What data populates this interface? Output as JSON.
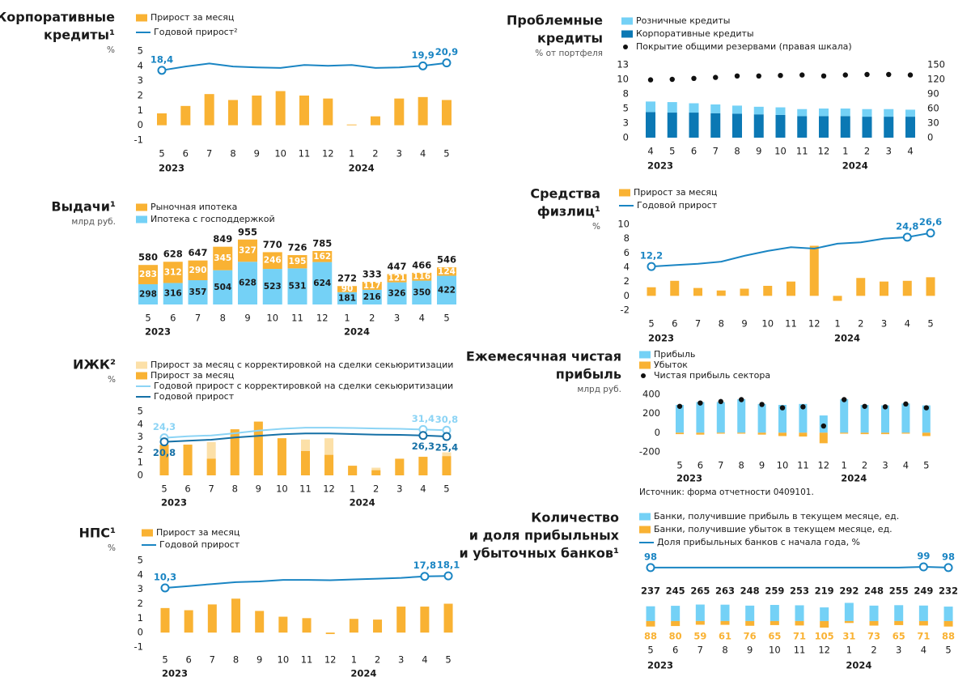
{
  "chart_data": [
    {
      "type": "combo",
      "title": [
        "Корпоративные",
        "кредиты¹"
      ],
      "unit": "%",
      "categories": [
        "5",
        "6",
        "7",
        "8",
        "9",
        "10",
        "11",
        "12",
        "1",
        "2",
        "3",
        "4",
        "5"
      ],
      "years": [
        "2023",
        null,
        null,
        null,
        null,
        null,
        null,
        null,
        "2024",
        null,
        null,
        null,
        null
      ],
      "ylim": [
        -1,
        5
      ],
      "yticks": [
        -1,
        0,
        1,
        2,
        3,
        4,
        5
      ],
      "y2lim": [
        -5.1,
        24.9
      ],
      "series": [
        {
          "name": "Прирост за месяц",
          "kind": "bar",
          "color": "#F9B233",
          "values": [
            0.8,
            1.3,
            2.1,
            1.7,
            2.0,
            2.3,
            2.0,
            1.8,
            0.05,
            0.6,
            1.8,
            1.9,
            1.7
          ]
        },
        {
          "name": "Годовой прирост²",
          "kind": "line",
          "axis": "y2",
          "color": "#1A85C3",
          "values": [
            18.4,
            19.7,
            20.7,
            19.7,
            19.4,
            19.2,
            20.2,
            19.9,
            20.2,
            19.2,
            19.4,
            19.9,
            20.9
          ],
          "value_labels": [
            "18,4",
            null,
            null,
            null,
            null,
            null,
            null,
            null,
            null,
            null,
            null,
            "19,9",
            "20,9"
          ]
        }
      ]
    },
    {
      "type": "combo",
      "title": [
        "Выдачи¹"
      ],
      "unit": "млрд руб.",
      "categories": [
        "5",
        "6",
        "7",
        "8",
        "9",
        "10",
        "11",
        "12",
        "1",
        "2",
        "3",
        "4",
        "5"
      ],
      "years": [
        "2023",
        null,
        null,
        null,
        null,
        null,
        null,
        null,
        "2024",
        null,
        null,
        null,
        null
      ],
      "ylim": [
        0,
        1000
      ],
      "series": [
        {
          "name": "Рыночная ипотека",
          "kind": "bar",
          "stack": true,
          "color": "#F9B233",
          "values": [
            283,
            312,
            290,
            345,
            327,
            246,
            195,
            162,
            90,
            117,
            121,
            116,
            124
          ]
        },
        {
          "name": "Ипотека с господдержкой",
          "kind": "bar",
          "stack": true,
          "color": "#74D1F6",
          "values": [
            298,
            316,
            357,
            504,
            628,
            523,
            531,
            624,
            181,
            216,
            326,
            350,
            422
          ]
        }
      ],
      "stack_order": [
        1,
        0
      ],
      "totals": [
        580,
        628,
        647,
        849,
        955,
        770,
        726,
        785,
        272,
        333,
        447,
        466,
        546
      ]
    },
    {
      "type": "combo",
      "title": [
        "ИЖК²"
      ],
      "unit": "%",
      "categories": [
        "5",
        "6",
        "7",
        "8",
        "9",
        "10",
        "11",
        "12",
        "1",
        "2",
        "3",
        "4",
        "5"
      ],
      "years": [
        "2023",
        null,
        null,
        null,
        null,
        null,
        null,
        null,
        "2024",
        null,
        null,
        null,
        null
      ],
      "ylim": [
        0,
        5
      ],
      "yticks": [
        0,
        1,
        2,
        3,
        4,
        5
      ],
      "y2lim": [
        -8,
        47
      ],
      "series": [
        {
          "name": "Прирост за месяц с корректировкой на сделки секьюритизации",
          "kind": "bar",
          "color": "#FCE0A8",
          "values": [
            2.4,
            2.4,
            2.6,
            3.6,
            4.2,
            2.9,
            2.8,
            2.9,
            0.75,
            0.6,
            1.3,
            1.45,
            1.8
          ]
        },
        {
          "name": "Прирост за месяц",
          "kind": "bar",
          "color": "#F9B233",
          "values": [
            2.4,
            2.4,
            1.3,
            3.6,
            4.2,
            2.9,
            1.9,
            1.6,
            0.75,
            0.4,
            1.3,
            1.45,
            1.5
          ]
        },
        {
          "name": "Годовой прирост с корректировкой на сделки секьюритизации",
          "kind": "line",
          "axis": "y2",
          "color": "#8CD4F5",
          "values": [
            24.3,
            25.6,
            26.3,
            28.2,
            30.5,
            32.0,
            33.0,
            33.0,
            32.7,
            32.3,
            32.0,
            31.4,
            30.8
          ],
          "value_labels": [
            "24,3",
            null,
            null,
            null,
            null,
            null,
            null,
            null,
            null,
            null,
            null,
            "31,4",
            "30,8"
          ]
        },
        {
          "name": "Годовой прирост",
          "kind": "line",
          "axis": "y2",
          "color": "#1570A6",
          "values": [
            20.8,
            21.8,
            22.6,
            24.5,
            26.0,
            27.3,
            28.0,
            28.0,
            27.5,
            27.0,
            26.8,
            26.3,
            25.4
          ],
          "value_labels": [
            "20,8",
            null,
            null,
            null,
            null,
            null,
            null,
            null,
            null,
            null,
            null,
            "26,3",
            "25,4"
          ]
        }
      ]
    },
    {
      "type": "combo",
      "title": [
        "НПС¹"
      ],
      "unit": "%",
      "categories": [
        "5",
        "6",
        "7",
        "8",
        "9",
        "10",
        "11",
        "12",
        "1",
        "2",
        "3",
        "4",
        "5"
      ],
      "years": [
        "2023",
        null,
        null,
        null,
        null,
        null,
        null,
        null,
        "2024",
        null,
        null,
        null,
        null
      ],
      "ylim": [
        -1,
        5
      ],
      "yticks": [
        -1,
        0,
        1,
        2,
        3,
        4,
        5
      ],
      "y2lim": [
        -28.2,
        28.2
      ],
      "series": [
        {
          "name": "Прирост за месяц",
          "kind": "bar",
          "color": "#F9B233",
          "values": [
            1.7,
            1.55,
            1.95,
            2.35,
            1.5,
            1.1,
            1.0,
            -0.1,
            0.95,
            0.9,
            1.8,
            1.8,
            2.0
          ]
        },
        {
          "name": "Годовой прирост",
          "kind": "line",
          "axis": "y2",
          "color": "#1A85C3",
          "values": [
            10.3,
            11.5,
            12.8,
            14.0,
            14.5,
            15.5,
            15.5,
            15.3,
            15.8,
            16.3,
            16.8,
            17.8,
            18.1
          ],
          "value_labels": [
            "10,3",
            null,
            null,
            null,
            null,
            null,
            null,
            null,
            null,
            null,
            null,
            "17,8",
            "18,1"
          ]
        }
      ]
    },
    {
      "type": "combo",
      "title": [
        "Проблемные",
        "кредиты"
      ],
      "unit": "% от портфеля",
      "categories": [
        "4",
        "5",
        "6",
        "7",
        "8",
        "9",
        "10",
        "11",
        "12",
        "1",
        "2",
        "3",
        "4"
      ],
      "years": [
        "2023",
        null,
        null,
        null,
        null,
        null,
        null,
        null,
        null,
        "2024",
        null,
        null,
        null
      ],
      "ylim": [
        0,
        12.5
      ],
      "yticks": [
        0,
        {
          "value": 2.5,
          "label": "3"
        },
        5,
        {
          "value": 7.5,
          "label": "8"
        },
        10,
        {
          "value": 12.5,
          "label": "13"
        }
      ],
      "y2lim": [
        0,
        150
      ],
      "y2ticks": [
        0,
        30,
        60,
        90,
        120,
        150
      ],
      "series": [
        {
          "name": "Розничные кредиты",
          "kind": "bar",
          "stack": true,
          "color": "#74D1F6",
          "values": [
            1.8,
            1.8,
            1.6,
            1.5,
            1.4,
            1.3,
            1.3,
            1.2,
            1.3,
            1.3,
            1.3,
            1.3,
            1.2
          ]
        },
        {
          "name": "Корпоративные кредиты",
          "kind": "bar",
          "stack": true,
          "color": "#0B78B4",
          "values": [
            4.4,
            4.3,
            4.3,
            4.2,
            4.1,
            4.0,
            3.9,
            3.7,
            3.7,
            3.7,
            3.6,
            3.6,
            3.6
          ]
        },
        {
          "name": "Покрытие общими резервами (правая шкала)",
          "kind": "dot",
          "axis": "y2",
          "color": "#111111",
          "values": [
            119,
            120,
            122,
            124,
            127,
            127,
            128,
            129,
            127,
            129,
            130,
            130,
            129
          ]
        }
      ],
      "stack_order": [
        1,
        0
      ]
    },
    {
      "type": "combo",
      "title": [
        "Средства",
        "физлиц¹"
      ],
      "unit": "%",
      "categories": [
        "5",
        "6",
        "7",
        "8",
        "9",
        "10",
        "11",
        "12",
        "1",
        "2",
        "3",
        "4",
        "5"
      ],
      "years": [
        "2023",
        null,
        null,
        null,
        null,
        null,
        null,
        null,
        "2024",
        null,
        null,
        null,
        null
      ],
      "ylim": [
        -2,
        10
      ],
      "yticks": [
        -2,
        0,
        2,
        4,
        6,
        8,
        10
      ],
      "y2lim": [
        -6.55,
        30.33
      ],
      "series": [
        {
          "name": "Прирост за месяц",
          "kind": "bar",
          "color": "#F9B233",
          "values": [
            1.2,
            2.1,
            1.1,
            0.75,
            1.0,
            1.4,
            2.0,
            7.0,
            -0.7,
            2.5,
            2.0,
            2.1,
            2.6
          ]
        },
        {
          "name": "Годовой прирост",
          "kind": "line",
          "axis": "y2",
          "color": "#1A85C3",
          "values": [
            12.2,
            12.8,
            13.4,
            14.3,
            16.8,
            18.9,
            20.5,
            19.9,
            22.0,
            22.6,
            24.2,
            24.8,
            26.6
          ],
          "value_labels": [
            "12,2",
            null,
            null,
            null,
            null,
            null,
            null,
            null,
            null,
            null,
            null,
            "24,8",
            "26,6"
          ]
        }
      ]
    },
    {
      "type": "combo",
      "title": [
        "Ежемесячная чистая",
        "прибыль"
      ],
      "unit": "млрд руб.",
      "categories": [
        "5",
        "6",
        "7",
        "8",
        "9",
        "10",
        "11",
        "12",
        "1",
        "2",
        "3",
        "4",
        "5"
      ],
      "years": [
        "2023",
        null,
        null,
        null,
        null,
        null,
        null,
        null,
        "2024",
        null,
        null,
        null,
        null
      ],
      "ylim": [
        -200,
        400
      ],
      "yticks": [
        -200,
        0,
        200,
        400
      ],
      "series": [
        {
          "name": "Прибыль",
          "kind": "bar",
          "color": "#74D1F6",
          "values": [
            290,
            320,
            320,
            350,
            300,
            290,
            300,
            180,
            350,
            290,
            285,
            305,
            285
          ]
        },
        {
          "name": "Убыток",
          "kind": "bar",
          "color": "#F9B233",
          "values": [
            -15,
            -20,
            -10,
            -10,
            -20,
            -35,
            -40,
            -110,
            -10,
            -15,
            -15,
            -10,
            -35
          ]
        },
        {
          "name": "Чистая прибыль сектора",
          "kind": "dot",
          "color": "#111111",
          "values": [
            275,
            310,
            325,
            345,
            295,
            260,
            270,
            70,
            345,
            275,
            270,
            300,
            260
          ]
        }
      ],
      "source": "Источник: форма отчетности 0409101."
    },
    {
      "type": "combo",
      "title": [
        "Количество",
        "и доля прибыльных",
        "и убыточных банков¹"
      ],
      "categories": [
        "5",
        "6",
        "7",
        "8",
        "9",
        "10",
        "11",
        "12",
        "1",
        "2",
        "3",
        "4",
        "5"
      ],
      "years": [
        "2023",
        null,
        null,
        null,
        null,
        null,
        null,
        null,
        "2024",
        null,
        null,
        null,
        null
      ],
      "ylim": [
        -300,
        1000
      ],
      "y2lim": [
        0,
        110
      ],
      "series": [
        {
          "name": "Банки, получившие прибыль в текущем месяце, ед.",
          "kind": "bar",
          "color": "#74D1F6",
          "values": [
            237,
            245,
            265,
            263,
            248,
            259,
            253,
            219,
            292,
            248,
            255,
            249,
            232
          ]
        },
        {
          "name": "Банки, получившие убыток в текущем месяце, ед.",
          "kind": "bar",
          "downward": true,
          "color": "#F9B233",
          "values": [
            88,
            80,
            59,
            61,
            76,
            65,
            71,
            105,
            31,
            73,
            65,
            71,
            88
          ]
        },
        {
          "name": "Доля прибыльных банков с начала года, %",
          "kind": "line",
          "axis": "y2",
          "color": "#1A85C3",
          "values": [
            98,
            98,
            98,
            98,
            98,
            98,
            98,
            98,
            98,
            98,
            98,
            99,
            98
          ],
          "value_labels": [
            "98",
            null,
            null,
            null,
            null,
            null,
            null,
            null,
            null,
            null,
            null,
            "99",
            "98"
          ]
        }
      ]
    }
  ]
}
